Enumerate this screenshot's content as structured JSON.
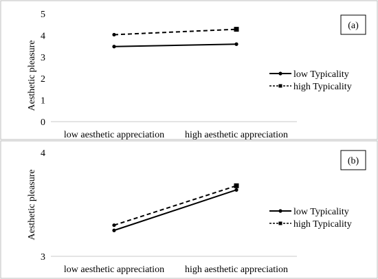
{
  "chart_data": [
    {
      "panel_label": "(a)",
      "type": "line",
      "categories": [
        "low aesthetic appreciation",
        "high aesthetic appreciation"
      ],
      "ylabel": "Aesthetic pleasure",
      "ylim": [
        0,
        5
      ],
      "yticks": [
        "0",
        "1",
        "2",
        "3",
        "4",
        "5"
      ],
      "series": [
        {
          "name": "low Typicality",
          "values": [
            3.48,
            3.59
          ],
          "style": "solid",
          "marker": "circle"
        },
        {
          "name": "high Typicality",
          "values": [
            4.03,
            4.28
          ],
          "style": "dashed",
          "marker": "square"
        }
      ],
      "grid": false,
      "legend_position": "right"
    },
    {
      "panel_label": "(b)",
      "type": "line",
      "categories": [
        "low aesthetic appreciation",
        "high aesthetic appreciation"
      ],
      "ylabel": "Aesthetic pleasure",
      "ylim": [
        3,
        4
      ],
      "yticks": [
        "3",
        "4"
      ],
      "series": [
        {
          "name": "low Typicality",
          "values": [
            3.25,
            3.64
          ],
          "style": "solid",
          "marker": "circle"
        },
        {
          "name": "high Typicality",
          "values": [
            3.3,
            3.68
          ],
          "style": "dashed",
          "marker": "square"
        }
      ],
      "grid": false,
      "legend_position": "right"
    }
  ]
}
